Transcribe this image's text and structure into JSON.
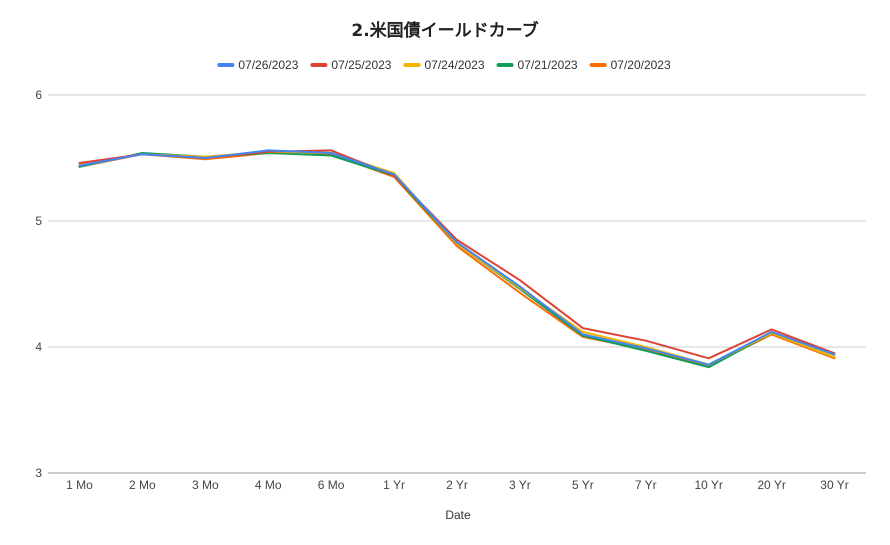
{
  "chart_data": {
    "type": "line",
    "title": "2.米国債イールドカーブ",
    "xlabel": "Date",
    "ylabel": "",
    "ylim": [
      3,
      6
    ],
    "yticks": [
      3,
      4,
      5,
      6
    ],
    "grid": true,
    "legend_position": "top",
    "categories": [
      "1 Mo",
      "2 Mo",
      "3 Mo",
      "4 Mo",
      "6 Mo",
      "1 Yr",
      "2 Yr",
      "3 Yr",
      "5 Yr",
      "7 Yr",
      "10 Yr",
      "20 Yr",
      "30 Yr"
    ],
    "series": [
      {
        "name": "07/26/2023",
        "color": "#4285f4",
        "values": [
          5.44,
          5.53,
          5.5,
          5.56,
          5.54,
          5.37,
          4.83,
          4.48,
          4.1,
          3.99,
          3.86,
          4.12,
          3.94
        ]
      },
      {
        "name": "07/25/2023",
        "color": "#db4437",
        "values": [
          5.46,
          5.53,
          5.5,
          5.55,
          5.56,
          5.36,
          4.85,
          4.53,
          4.15,
          4.05,
          3.91,
          4.14,
          3.95
        ]
      },
      {
        "name": "07/24/2023",
        "color": "#f4b400",
        "values": [
          5.45,
          5.53,
          5.51,
          5.55,
          5.54,
          5.38,
          4.82,
          4.47,
          4.12,
          4.0,
          3.86,
          4.11,
          3.92
        ]
      },
      {
        "name": "07/21/2023",
        "color": "#0f9d58",
        "values": [
          5.43,
          5.54,
          5.51,
          5.54,
          5.52,
          5.36,
          4.82,
          4.46,
          4.09,
          3.97,
          3.84,
          4.11,
          3.92
        ]
      },
      {
        "name": "07/20/2023",
        "color": "#ff6d01",
        "values": [
          5.43,
          5.53,
          5.49,
          5.54,
          5.53,
          5.35,
          4.8,
          4.43,
          4.08,
          3.98,
          3.85,
          4.1,
          3.91
        ]
      }
    ]
  }
}
